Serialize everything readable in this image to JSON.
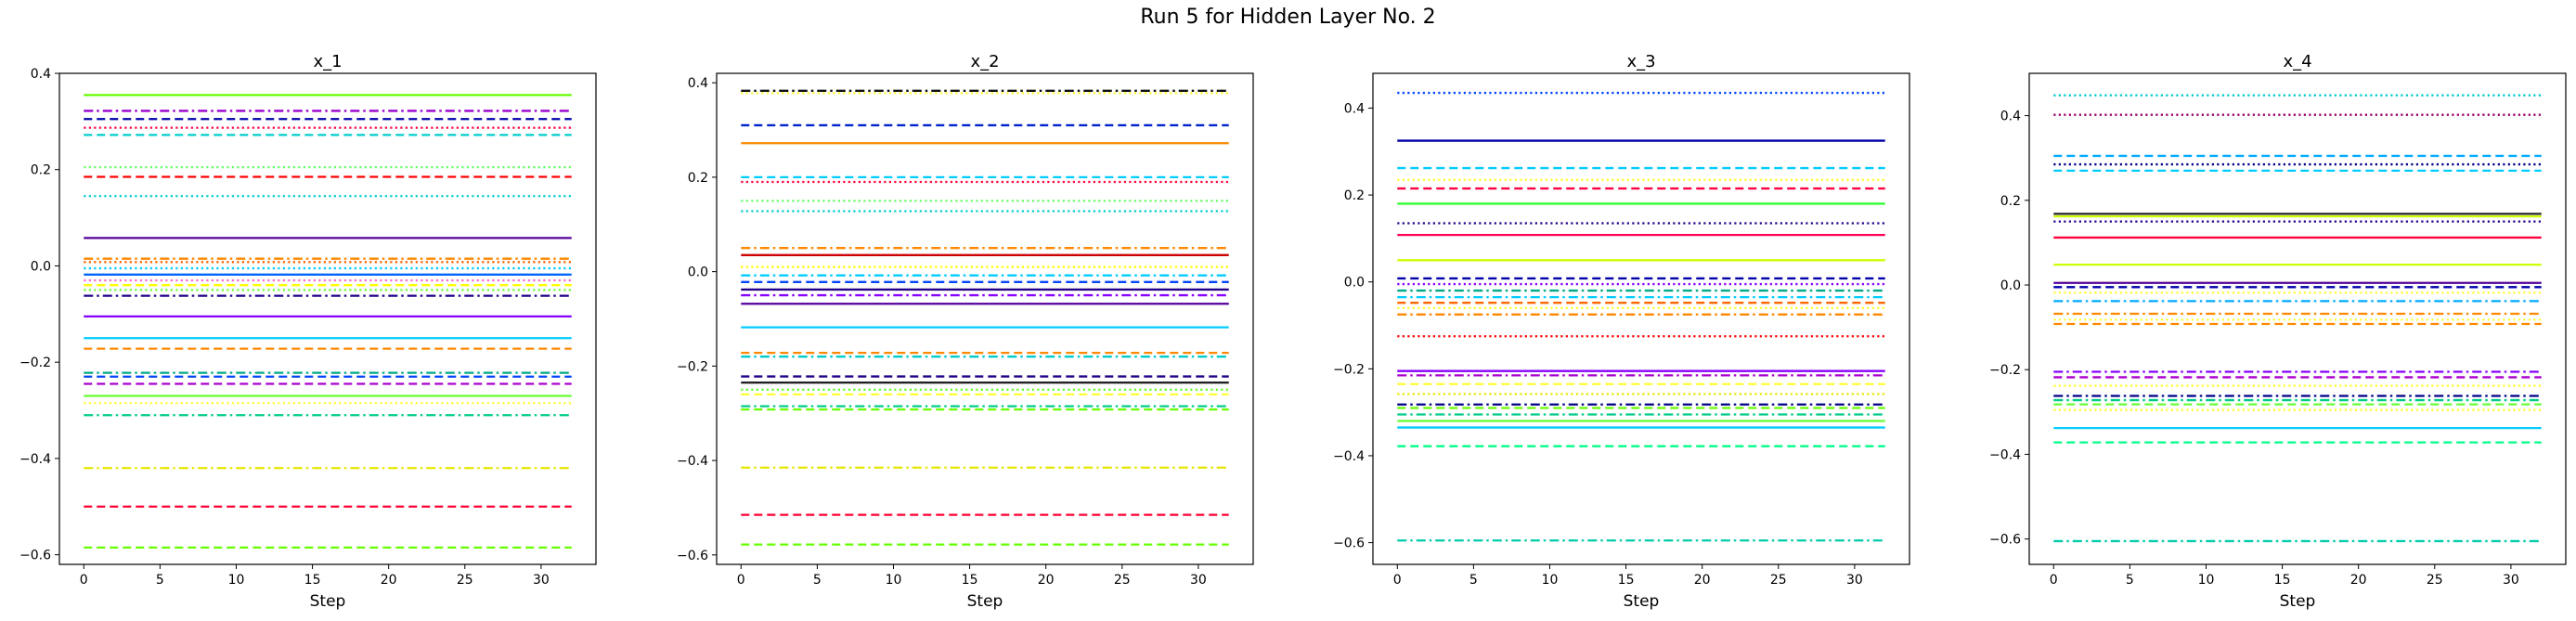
{
  "figure": {
    "title": "Run 5 for Hidden Layer No. 2"
  },
  "chart_data": [
    {
      "type": "line",
      "title": "x_1",
      "xlabel": "Step",
      "ylabel": "",
      "xlim": [
        -1.6,
        33.6
      ],
      "ylim": [
        -0.62,
        0.4
      ],
      "xticks": [
        0,
        5,
        10,
        15,
        20,
        25,
        30
      ],
      "yticks": [
        -0.6,
        -0.4,
        -0.2,
        0.0,
        0.2,
        0.4
      ],
      "ytick_labels": [
        "−0.6",
        "−0.4",
        "−0.2",
        "0.0",
        "0.2",
        "0.4"
      ],
      "x": [
        0,
        32
      ],
      "grid": false,
      "series": [
        {
          "values": [
            0.355,
            0.355
          ],
          "color": "#66ff00",
          "style": "solid"
        },
        {
          "values": [
            0.322,
            0.322
          ],
          "color": "#9900cc",
          "style": "dashdot"
        },
        {
          "values": [
            0.305,
            0.305
          ],
          "color": "#0000aa",
          "style": "dashed"
        },
        {
          "values": [
            0.287,
            0.287
          ],
          "color": "#ff0040",
          "style": "dotted"
        },
        {
          "values": [
            0.272,
            0.272
          ],
          "color": "#00cccc",
          "style": "dashed"
        },
        {
          "values": [
            0.205,
            0.205
          ],
          "color": "#66ff66",
          "style": "dotted"
        },
        {
          "values": [
            0.185,
            0.185
          ],
          "color": "#ff0000",
          "style": "dashed"
        },
        {
          "values": [
            0.145,
            0.145
          ],
          "color": "#00cccc",
          "style": "dotted"
        },
        {
          "values": [
            0.058,
            0.058
          ],
          "color": "#550099",
          "style": "solid"
        },
        {
          "values": [
            0.015,
            0.015
          ],
          "color": "#ff8800",
          "style": "dashdot"
        },
        {
          "values": [
            0.008,
            0.008
          ],
          "color": "#ff6600",
          "style": "dotted"
        },
        {
          "values": [
            -0.005,
            -0.005
          ],
          "color": "#00ccff",
          "style": "dotted"
        },
        {
          "values": [
            -0.018,
            -0.018
          ],
          "color": "#0066ff",
          "style": "solid"
        },
        {
          "values": [
            -0.03,
            -0.03
          ],
          "color": "#ff66cc",
          "style": "dotted"
        },
        {
          "values": [
            -0.04,
            -0.04
          ],
          "color": "#ffff00",
          "style": "dashed"
        },
        {
          "values": [
            -0.05,
            -0.05
          ],
          "color": "#66ff33",
          "style": "dotted"
        },
        {
          "values": [
            -0.062,
            -0.062
          ],
          "color": "#220088",
          "style": "dashdot"
        },
        {
          "values": [
            -0.105,
            -0.105
          ],
          "color": "#8800ff",
          "style": "solid"
        },
        {
          "values": [
            -0.15,
            -0.15
          ],
          "color": "#00ccff",
          "style": "solid"
        },
        {
          "values": [
            -0.172,
            -0.172
          ],
          "color": "#ff8800",
          "style": "dashed"
        },
        {
          "values": [
            -0.222,
            -0.222
          ],
          "color": "#00aa88",
          "style": "dashdot"
        },
        {
          "values": [
            -0.23,
            -0.23
          ],
          "color": "#0044ff",
          "style": "dashed"
        },
        {
          "values": [
            -0.245,
            -0.245
          ],
          "color": "#aa00cc",
          "style": "dashed"
        },
        {
          "values": [
            -0.27,
            -0.27
          ],
          "color": "#66ff33",
          "style": "solid"
        },
        {
          "values": [
            -0.285,
            -0.285
          ],
          "color": "#ffff33",
          "style": "dotted"
        },
        {
          "values": [
            -0.31,
            -0.31
          ],
          "color": "#00cc88",
          "style": "dashdot"
        },
        {
          "values": [
            -0.42,
            -0.42
          ],
          "color": "#e6e600",
          "style": "dashdot"
        },
        {
          "values": [
            -0.5,
            -0.5
          ],
          "color": "#ff0033",
          "style": "dashed"
        },
        {
          "values": [
            -0.585,
            -0.585
          ],
          "color": "#66ff00",
          "style": "dashed"
        }
      ]
    },
    {
      "type": "line",
      "title": "x_2",
      "xlabel": "Step",
      "ylabel": "",
      "xlim": [
        -1.6,
        33.6
      ],
      "ylim": [
        -0.62,
        0.42
      ],
      "xticks": [
        0,
        5,
        10,
        15,
        20,
        25,
        30
      ],
      "yticks": [
        -0.6,
        -0.4,
        -0.2,
        0.0,
        0.2,
        0.4
      ],
      "ytick_labels": [
        "−0.6",
        "−0.4",
        "−0.2",
        "0.0",
        "0.2",
        "0.4"
      ],
      "x": [
        0,
        32
      ],
      "grid": false,
      "series": [
        {
          "values": [
            0.383,
            0.383
          ],
          "color": "#111111",
          "style": "dashdot"
        },
        {
          "values": [
            0.378,
            0.378
          ],
          "color": "#ffff33",
          "style": "dotted"
        },
        {
          "values": [
            0.31,
            0.31
          ],
          "color": "#0022cc",
          "style": "dashed"
        },
        {
          "values": [
            0.272,
            0.272
          ],
          "color": "#ff8800",
          "style": "solid"
        },
        {
          "values": [
            0.2,
            0.2
          ],
          "color": "#00ccff",
          "style": "dashed"
        },
        {
          "values": [
            0.19,
            0.19
          ],
          "color": "#ff0040",
          "style": "dotted"
        },
        {
          "values": [
            0.15,
            0.15
          ],
          "color": "#66ff66",
          "style": "dotted"
        },
        {
          "values": [
            0.128,
            0.128
          ],
          "color": "#00cccc",
          "style": "dotted"
        },
        {
          "values": [
            0.05,
            0.05
          ],
          "color": "#ff8800",
          "style": "dashdot"
        },
        {
          "values": [
            0.035,
            0.035
          ],
          "color": "#cc0000",
          "style": "solid"
        },
        {
          "values": [
            0.01,
            0.01
          ],
          "color": "#ffff00",
          "style": "dotted"
        },
        {
          "values": [
            -0.008,
            -0.008
          ],
          "color": "#00ccff",
          "style": "dashdot"
        },
        {
          "values": [
            -0.022,
            -0.022
          ],
          "color": "#0044ff",
          "style": "dashed"
        },
        {
          "values": [
            -0.038,
            -0.038
          ],
          "color": "#220088",
          "style": "solid"
        },
        {
          "values": [
            -0.05,
            -0.05
          ],
          "color": "#8800ff",
          "style": "dashdot"
        },
        {
          "values": [
            -0.068,
            -0.068
          ],
          "color": "#550099",
          "style": "solid"
        },
        {
          "values": [
            -0.118,
            -0.118
          ],
          "color": "#00ccff",
          "style": "solid"
        },
        {
          "values": [
            -0.172,
            -0.172
          ],
          "color": "#ff8800",
          "style": "dashed"
        },
        {
          "values": [
            -0.18,
            -0.18
          ],
          "color": "#00cccc",
          "style": "dashdot"
        },
        {
          "values": [
            -0.222,
            -0.222
          ],
          "color": "#220088",
          "style": "dashed"
        },
        {
          "values": [
            -0.235,
            -0.235
          ],
          "color": "#222222",
          "style": "solid"
        },
        {
          "values": [
            -0.25,
            -0.25
          ],
          "color": "#66ff33",
          "style": "dotted"
        },
        {
          "values": [
            -0.26,
            -0.26
          ],
          "color": "#ffff33",
          "style": "dashed"
        },
        {
          "values": [
            -0.285,
            -0.285
          ],
          "color": "#00cc88",
          "style": "dashdot"
        },
        {
          "values": [
            -0.292,
            -0.292
          ],
          "color": "#66ff00",
          "style": "dashed"
        },
        {
          "values": [
            -0.415,
            -0.415
          ],
          "color": "#e6e600",
          "style": "dashdot"
        },
        {
          "values": [
            -0.515,
            -0.515
          ],
          "color": "#ff0033",
          "style": "dashed"
        },
        {
          "values": [
            -0.578,
            -0.578
          ],
          "color": "#66ff00",
          "style": "dashed"
        }
      ]
    },
    {
      "type": "line",
      "title": "x_3",
      "xlabel": "Step",
      "ylabel": "",
      "xlim": [
        -1.6,
        33.6
      ],
      "ylim": [
        -0.65,
        0.48
      ],
      "xticks": [
        0,
        5,
        10,
        15,
        20,
        25,
        30
      ],
      "yticks": [
        -0.6,
        -0.4,
        -0.2,
        0.0,
        0.2,
        0.4
      ],
      "ytick_labels": [
        "−0.6",
        "−0.4",
        "−0.2",
        "0.0",
        "0.2",
        "0.4"
      ],
      "x": [
        0,
        32
      ],
      "grid": false,
      "series": [
        {
          "values": [
            0.435,
            0.435
          ],
          "color": "#0044ff",
          "style": "dotted"
        },
        {
          "values": [
            0.325,
            0.325
          ],
          "color": "#0000aa",
          "style": "solid"
        },
        {
          "values": [
            0.262,
            0.262
          ],
          "color": "#00ccff",
          "style": "dashed"
        },
        {
          "values": [
            0.235,
            0.235
          ],
          "color": "#ffff33",
          "style": "dotted"
        },
        {
          "values": [
            0.215,
            0.215
          ],
          "color": "#ff0040",
          "style": "dashed"
        },
        {
          "values": [
            0.18,
            0.18
          ],
          "color": "#33ff33",
          "style": "solid"
        },
        {
          "values": [
            0.135,
            0.135
          ],
          "color": "#220088",
          "style": "dotted"
        },
        {
          "values": [
            0.108,
            0.108
          ],
          "color": "#ff0055",
          "style": "solid"
        },
        {
          "values": [
            0.05,
            0.05
          ],
          "color": "#ccff00",
          "style": "solid"
        },
        {
          "values": [
            0.008,
            0.008
          ],
          "color": "#0000aa",
          "style": "dashed"
        },
        {
          "values": [
            -0.005,
            -0.005
          ],
          "color": "#8800ff",
          "style": "dotted"
        },
        {
          "values": [
            -0.02,
            -0.02
          ],
          "color": "#00aa88",
          "style": "dashdot"
        },
        {
          "values": [
            -0.035,
            -0.035
          ],
          "color": "#00ccff",
          "style": "dashdot"
        },
        {
          "values": [
            -0.048,
            -0.048
          ],
          "color": "#ff6600",
          "style": "dashed"
        },
        {
          "values": [
            -0.06,
            -0.06
          ],
          "color": "#ffff33",
          "style": "dotted"
        },
        {
          "values": [
            -0.075,
            -0.075
          ],
          "color": "#ff8800",
          "style": "dashdot"
        },
        {
          "values": [
            -0.125,
            -0.125
          ],
          "color": "#ff0000",
          "style": "dotted"
        },
        {
          "values": [
            -0.205,
            -0.205
          ],
          "color": "#8800ff",
          "style": "solid"
        },
        {
          "values": [
            -0.215,
            -0.215
          ],
          "color": "#aa00cc",
          "style": "dashdot"
        },
        {
          "values": [
            -0.235,
            -0.235
          ],
          "color": "#ffff33",
          "style": "dashed"
        },
        {
          "values": [
            -0.258,
            -0.258
          ],
          "color": "#e6e600",
          "style": "dotted"
        },
        {
          "values": [
            -0.282,
            -0.282
          ],
          "color": "#000088",
          "style": "dashdot"
        },
        {
          "values": [
            -0.29,
            -0.29
          ],
          "color": "#66ff00",
          "style": "dashed"
        },
        {
          "values": [
            -0.305,
            -0.305
          ],
          "color": "#00cc88",
          "style": "dashdot"
        },
        {
          "values": [
            -0.32,
            -0.32
          ],
          "color": "#66ff33",
          "style": "solid"
        },
        {
          "values": [
            -0.335,
            -0.335
          ],
          "color": "#00ccff",
          "style": "solid"
        },
        {
          "values": [
            -0.378,
            -0.378
          ],
          "color": "#00ff88",
          "style": "dashed"
        },
        {
          "values": [
            -0.595,
            -0.595
          ],
          "color": "#00ccaa",
          "style": "dashdot"
        }
      ]
    },
    {
      "type": "line",
      "title": "x_4",
      "xlabel": "Step",
      "ylabel": "",
      "xlim": [
        -1.6,
        33.6
      ],
      "ylim": [
        -0.66,
        0.5
      ],
      "xticks": [
        0,
        5,
        10,
        15,
        20,
        25,
        30
      ],
      "yticks": [
        -0.6,
        -0.4,
        -0.2,
        0.0,
        0.2,
        0.4
      ],
      "ytick_labels": [
        "−0.6",
        "−0.4",
        "−0.2",
        "0.0",
        "0.2",
        "0.4"
      ],
      "x": [
        0,
        32
      ],
      "grid": false,
      "series": [
        {
          "values": [
            0.448,
            0.448
          ],
          "color": "#00cccc",
          "style": "dotted"
        },
        {
          "values": [
            0.402,
            0.402
          ],
          "color": "#990066",
          "style": "dotted"
        },
        {
          "values": [
            0.305,
            0.305
          ],
          "color": "#00aaff",
          "style": "dashed"
        },
        {
          "values": [
            0.285,
            0.285
          ],
          "color": "#000088",
          "style": "dotted"
        },
        {
          "values": [
            0.27,
            0.27
          ],
          "color": "#00ccff",
          "style": "dashed"
        },
        {
          "values": [
            0.168,
            0.168
          ],
          "color": "#222222",
          "style": "solid"
        },
        {
          "values": [
            0.162,
            0.162
          ],
          "color": "#ccff00",
          "style": "solid"
        },
        {
          "values": [
            0.15,
            0.15
          ],
          "color": "#220088",
          "style": "dotted"
        },
        {
          "values": [
            0.112,
            0.112
          ],
          "color": "#ff0040",
          "style": "solid"
        },
        {
          "values": [
            0.048,
            0.048
          ],
          "color": "#ccff00",
          "style": "solid"
        },
        {
          "values": [
            0.005,
            0.005
          ],
          "color": "#550099",
          "style": "solid"
        },
        {
          "values": [
            -0.005,
            -0.005
          ],
          "color": "#0000aa",
          "style": "dashed"
        },
        {
          "values": [
            -0.018,
            -0.018
          ],
          "color": "#ffff33",
          "style": "dotted"
        },
        {
          "values": [
            -0.038,
            -0.038
          ],
          "color": "#00aaff",
          "style": "dashdot"
        },
        {
          "values": [
            -0.068,
            -0.068
          ],
          "color": "#ff8800",
          "style": "dashdot"
        },
        {
          "values": [
            -0.082,
            -0.082
          ],
          "color": "#ffff33",
          "style": "dotted"
        },
        {
          "values": [
            -0.092,
            -0.092
          ],
          "color": "#ff8800",
          "style": "dashed"
        },
        {
          "values": [
            -0.205,
            -0.205
          ],
          "color": "#8800ff",
          "style": "dashdot"
        },
        {
          "values": [
            -0.218,
            -0.218
          ],
          "color": "#aa00cc",
          "style": "dashed"
        },
        {
          "values": [
            -0.238,
            -0.238
          ],
          "color": "#ffff33",
          "style": "dotted"
        },
        {
          "values": [
            -0.262,
            -0.262
          ],
          "color": "#000088",
          "style": "dashdot"
        },
        {
          "values": [
            -0.272,
            -0.272
          ],
          "color": "#00cc88",
          "style": "dashdot"
        },
        {
          "values": [
            -0.282,
            -0.282
          ],
          "color": "#66ff33",
          "style": "dashed"
        },
        {
          "values": [
            -0.295,
            -0.295
          ],
          "color": "#ffff33",
          "style": "dotted"
        },
        {
          "values": [
            -0.338,
            -0.338
          ],
          "color": "#00ccff",
          "style": "solid"
        },
        {
          "values": [
            -0.372,
            -0.372
          ],
          "color": "#00ff88",
          "style": "dashed"
        },
        {
          "values": [
            -0.605,
            -0.605
          ],
          "color": "#00ccaa",
          "style": "dashdot"
        }
      ]
    }
  ]
}
